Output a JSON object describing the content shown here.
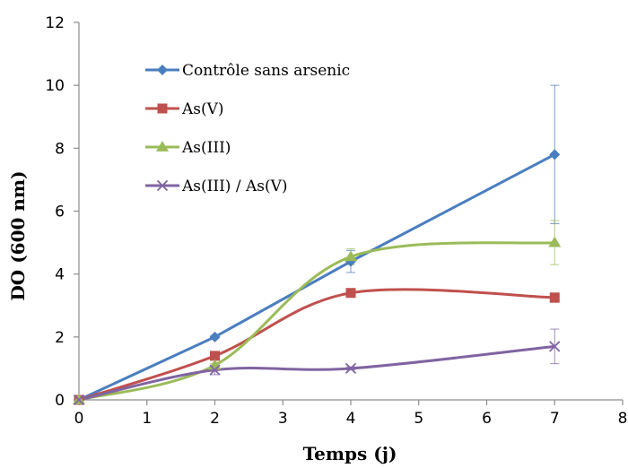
{
  "chart_data": {
    "type": "line",
    "title": "",
    "xlabel": "Temps (j)",
    "ylabel": "DO (600 nm)",
    "xlim": [
      0,
      8
    ],
    "ylim": [
      0,
      12
    ],
    "xticks": [
      "0",
      "1",
      "2",
      "3",
      "4",
      "5",
      "6",
      "7",
      "8"
    ],
    "yticks": [
      "0",
      "2",
      "4",
      "6",
      "8",
      "10",
      "12"
    ],
    "grid": false,
    "legend_position": "top-left",
    "series": [
      {
        "name": "Contrôle sans arsenic",
        "color": "#4a7ebf",
        "marker": "diamond",
        "smooth": false,
        "x": [
          0,
          2,
          4,
          7
        ],
        "y": [
          0,
          2.0,
          4.4,
          7.8
        ],
        "err": [
          0,
          0.05,
          0.35,
          2.2
        ]
      },
      {
        "name": "As(V)",
        "color": "#c0504d",
        "marker": "square",
        "smooth": true,
        "x": [
          0,
          2,
          4,
          7
        ],
        "y": [
          0,
          1.4,
          3.4,
          3.25
        ],
        "err": [
          0,
          0.05,
          0.1,
          0.15
        ]
      },
      {
        "name": "As(III)",
        "color": "#9bbb59",
        "marker": "triangle",
        "smooth": true,
        "x": [
          0,
          2,
          4,
          7
        ],
        "y": [
          0,
          1.1,
          4.55,
          5.0
        ],
        "err": [
          0,
          0.05,
          0.25,
          0.7
        ]
      },
      {
        "name": "As(III) / As(V)",
        "color": "#8064a2",
        "marker": "x",
        "smooth": true,
        "x": [
          0,
          2,
          4,
          7
        ],
        "y": [
          0,
          0.95,
          1.0,
          1.7
        ],
        "err": [
          0,
          0.15,
          0.05,
          0.55
        ]
      }
    ]
  }
}
